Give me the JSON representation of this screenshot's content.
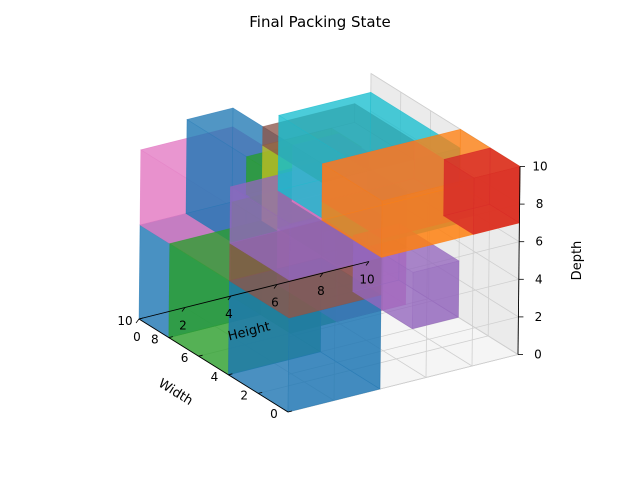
{
  "chart_data": {
    "type": "3d-box",
    "title": "Final Packing State",
    "axes": {
      "x": {
        "label": "Width",
        "lim": [
          0,
          10
        ],
        "ticks": [
          0,
          2,
          4,
          6,
          8,
          10
        ]
      },
      "y": {
        "label": "Height",
        "lim": [
          0,
          10
        ],
        "ticks": [
          0,
          2,
          4,
          6,
          8,
          10
        ]
      },
      "z": {
        "label": "Depth",
        "lim": [
          0,
          10
        ],
        "ticks": [
          0,
          2,
          4,
          6,
          8,
          10
        ]
      }
    },
    "grid": true,
    "boxes": [
      {
        "color": "#1f77b4",
        "x": 0,
        "y": 0,
        "z": 0,
        "dx": 4,
        "dy": 4,
        "dz": 5
      },
      {
        "color": "#8c564b",
        "x": 0,
        "y": 0,
        "z": 5,
        "dx": 4,
        "dy": 4,
        "dz": 2
      },
      {
        "color": "#9467bd",
        "x": 0,
        "y": 0,
        "z": 7,
        "dx": 4,
        "dy": 4,
        "dz": 3
      },
      {
        "color": "#2ca02c",
        "x": 4,
        "y": 0,
        "z": 0,
        "dx": 4,
        "dy": 4,
        "dz": 5
      },
      {
        "color": "#1f77b4",
        "x": 8,
        "y": 0,
        "z": 0,
        "dx": 2,
        "dy": 4,
        "dz": 5
      },
      {
        "color": "#e377c2",
        "x": 4,
        "y": 0,
        "z": 5,
        "dx": 6,
        "dy": 4,
        "dz": 4
      },
      {
        "color": "#1f77b4",
        "x": 6,
        "y": 2,
        "z": 5,
        "dx": 4,
        "dy": 2,
        "dz": 5
      },
      {
        "color": "#2ca02c",
        "x": 6,
        "y": 4,
        "z": 0,
        "dx": 4,
        "dy": 4,
        "dz": 5
      },
      {
        "color": "#e377c2",
        "x": 6,
        "y": 6,
        "z": 0,
        "dx": 4,
        "dy": 3,
        "dz": 3
      },
      {
        "color": "#7f7f7f",
        "x": 6,
        "y": 6,
        "z": 3,
        "dx": 4,
        "dy": 3,
        "dz": 3
      },
      {
        "color": "#9467bd",
        "x": 4,
        "y": 8,
        "z": 0,
        "dx": 4,
        "dy": 2,
        "dz": 3
      },
      {
        "color": "#bcbd22",
        "x": 6,
        "y": 4,
        "z": 5,
        "dx": 2,
        "dy": 3,
        "dz": 4
      },
      {
        "color": "#17becf",
        "x": 4,
        "y": 6,
        "z": 5,
        "dx": 6,
        "dy": 4,
        "dz": 4
      },
      {
        "color": "#8c564b",
        "x": 4,
        "y": 4,
        "z": 9,
        "dx": 4,
        "dy": 4,
        "dz": 1
      },
      {
        "color": "#ff7f0e",
        "x": 0,
        "y": 4,
        "z": 7,
        "dx": 4,
        "dy": 6,
        "dz": 3
      },
      {
        "color": "#d62728",
        "x": 0,
        "y": 8,
        "z": 7,
        "dx": 2,
        "dy": 2,
        "dz": 3
      },
      {
        "color": "#9467bd",
        "x": 0,
        "y": 4,
        "z": 8,
        "dx": 4,
        "dy": 4,
        "dz": 2
      },
      {
        "color": "#e377c2",
        "x": 4,
        "y": 4,
        "z": 7,
        "dx": 2,
        "dy": 2,
        "dz": 3
      },
      {
        "color": "#2ca02c",
        "x": 4,
        "y": 2,
        "z": 8,
        "dx": 2,
        "dy": 2,
        "dz": 2
      }
    ]
  }
}
